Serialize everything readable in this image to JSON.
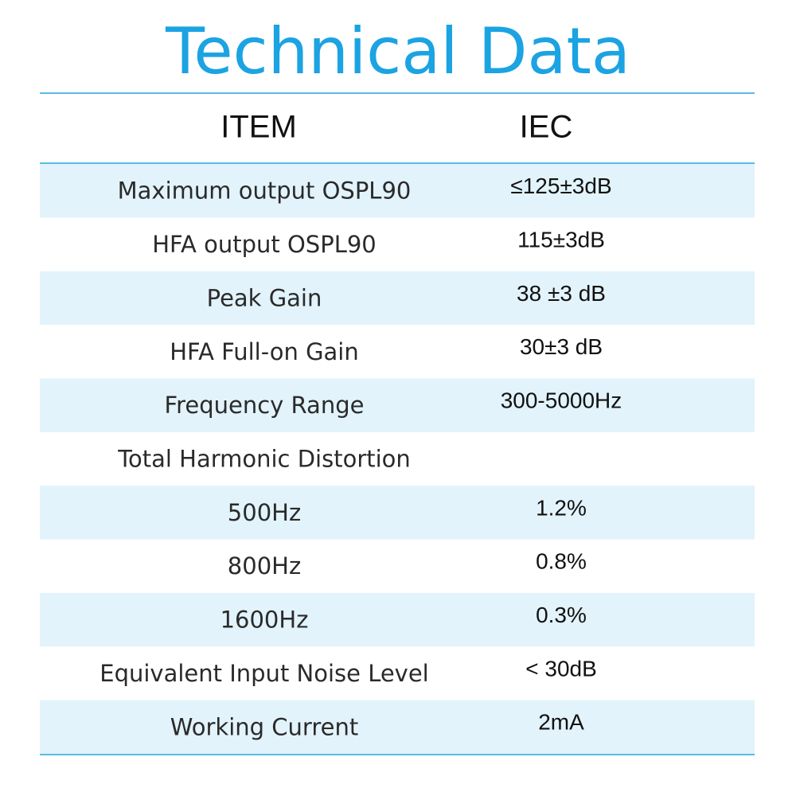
{
  "title": "Technical Data",
  "table": {
    "header": [
      "ITEM",
      "IEC"
    ],
    "rows": [
      [
        "Maximum output OSPL90",
        "≤125±3dB"
      ],
      [
        "HFA output OSPL90",
        "115±3dB"
      ],
      [
        "Peak Gain",
        "38 ±3 dB"
      ],
      [
        "HFA Full-on Gain",
        "30±3 dB"
      ],
      [
        "Frequency Range",
        "300-5000Hz"
      ],
      [
        "Total Harmonic Distortion"
      ],
      [
        "500Hz",
        "1.2%"
      ],
      [
        "800Hz",
        "0.8%"
      ],
      [
        "1600Hz",
        "0.3%"
      ],
      [
        "Equivalent Input Noise Level",
        "< 30dB"
      ],
      [
        "Working Current",
        "2mA"
      ]
    ]
  }
}
